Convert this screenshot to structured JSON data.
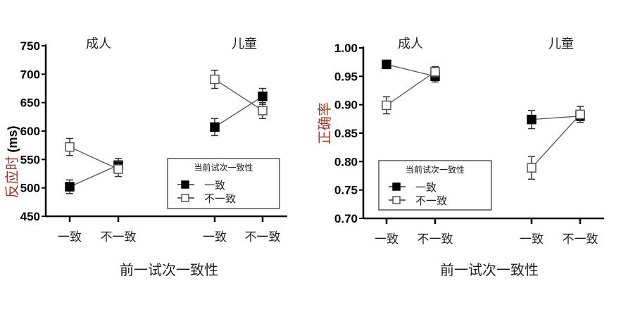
{
  "chart_data": [
    {
      "type": "line",
      "ylabel": "反应时",
      "ylabel_unit": "(ms)",
      "xlabel": "前一试次一致性",
      "ylim": [
        450,
        750
      ],
      "yticks": [
        "450",
        "500",
        "550",
        "600",
        "650",
        "700",
        "750"
      ],
      "groups": [
        "成人",
        "儿童"
      ],
      "categories": [
        "一致",
        "不一致"
      ],
      "legend": {
        "title": "当前试次一致性",
        "placement": "center-right"
      },
      "series": [
        {
          "name": "一致",
          "marker": "filled-square",
          "values": [
            [
              502,
              540
            ],
            [
              607,
              661
            ]
          ],
          "errors": [
            [
              12,
              12
            ],
            [
              15,
              14
            ]
          ]
        },
        {
          "name": "不一致",
          "marker": "open-square",
          "values": [
            [
              572,
              533
            ],
            [
              691,
              636
            ]
          ],
          "errors": [
            [
              15,
              13
            ],
            [
              16,
              14
            ]
          ]
        }
      ],
      "ylabel_color": "#9a3b2a"
    },
    {
      "type": "line",
      "ylabel": "正确率",
      "xlabel": "前一试次一致性",
      "ylim": [
        0.7,
        1.0
      ],
      "yticks": [
        "0.70",
        "0.75",
        "0.80",
        "0.85",
        "0.90",
        "0.95",
        "1.00"
      ],
      "groups": [
        "成人",
        "儿童"
      ],
      "categories": [
        "一致",
        "不一致"
      ],
      "legend": {
        "title": "当前试次一致性",
        "placement": "lower-left"
      },
      "series": [
        {
          "name": "一致",
          "marker": "filled-square",
          "values": [
            [
              0.971,
              0.95
            ],
            [
              0.874,
              0.88
            ]
          ],
          "errors": [
            [
              0.006,
              0.01
            ],
            [
              0.016,
              0.008
            ]
          ]
        },
        {
          "name": "不一致",
          "marker": "open-square",
          "values": [
            [
              0.899,
              0.958
            ],
            [
              0.789,
              0.883
            ]
          ],
          "errors": [
            [
              0.015,
              0.009
            ],
            [
              0.02,
              0.014
            ]
          ]
        }
      ],
      "ylabel_color": "#9a3b2a"
    }
  ]
}
